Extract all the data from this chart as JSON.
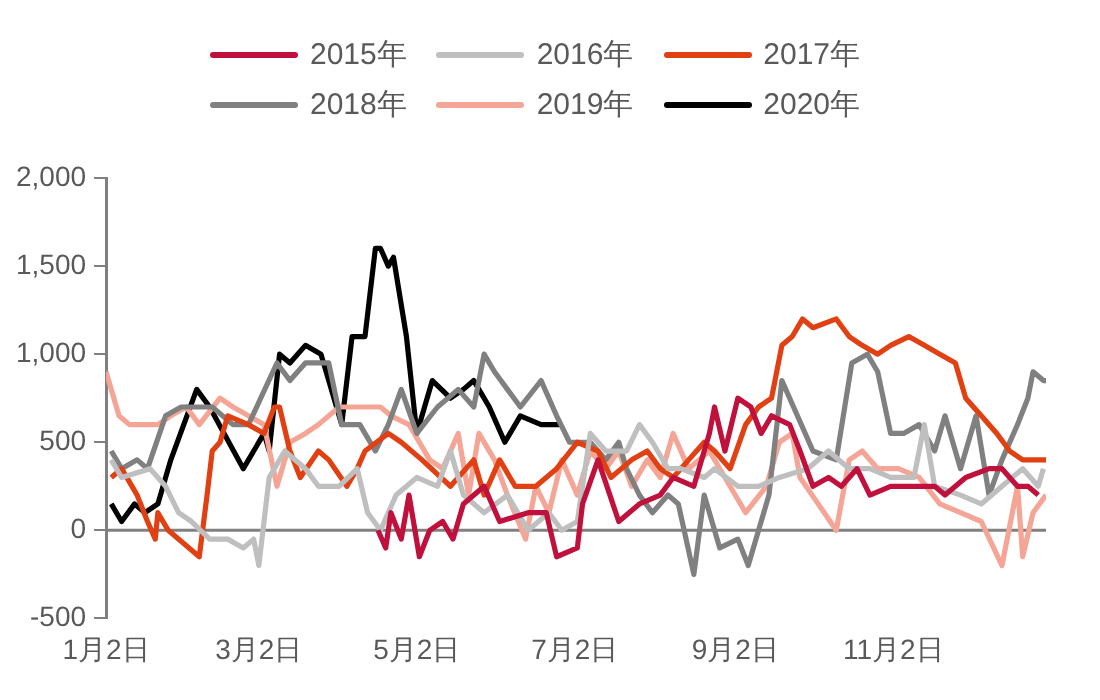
{
  "chart_data": {
    "type": "line",
    "xlim": [
      "--01-02",
      "--12-31"
    ],
    "xticks": [
      {
        "value": "--01-02",
        "label": "1月2日"
      },
      {
        "value": "--03-02",
        "label": "3月2日"
      },
      {
        "value": "--05-02",
        "label": "5月2日"
      },
      {
        "value": "--07-02",
        "label": "7月2日"
      },
      {
        "value": "--09-02",
        "label": "9月2日"
      },
      {
        "value": "--11-02",
        "label": "11月2日"
      }
    ],
    "ylim": [
      -500,
      2000
    ],
    "yticks": [
      {
        "value": -500,
        "label": "-500"
      },
      {
        "value": 0,
        "label": "0"
      },
      {
        "value": 500,
        "label": "500"
      },
      {
        "value": 1000,
        "label": "1,000"
      },
      {
        "value": 1500,
        "label": "1,500"
      },
      {
        "value": 2000,
        "label": "2,000"
      }
    ],
    "grid": false,
    "legend": "top",
    "ref_lines": [
      {
        "axis": "y",
        "value": 0,
        "color": "#808080"
      }
    ],
    "series": [
      {
        "name": "2015年",
        "color": "#c0103c",
        "x": [
          "--04-17",
          "--04-20",
          "--04-22",
          "--04-26",
          "--04-29",
          "--05-03",
          "--05-07",
          "--05-12",
          "--05-16",
          "--05-20",
          "--05-28",
          "--06-03",
          "--06-14",
          "--06-21",
          "--06-25",
          "--07-03",
          "--07-05",
          "--07-11",
          "--07-19",
          "--07-27",
          "--08-04",
          "--08-09",
          "--08-17",
          "--08-23",
          "--08-25",
          "--08-29",
          "--09-03",
          "--09-08",
          "--09-12",
          "--09-16",
          "--09-23",
          "--09-27",
          "--10-02",
          "--10-08",
          "--10-13",
          "--10-19",
          "--10-24",
          "--11-01",
          "--11-10",
          "--11-18",
          "--11-22",
          "--11-30",
          "--12-09",
          "--12-14",
          "--12-20",
          "--12-24",
          "--12-28"
        ],
        "values": [
          0,
          -100,
          100,
          -50,
          200,
          -150,
          0,
          50,
          -50,
          150,
          250,
          50,
          100,
          100,
          -150,
          -100,
          150,
          400,
          50,
          150,
          200,
          300,
          250,
          550,
          700,
          450,
          750,
          700,
          550,
          650,
          600,
          450,
          250,
          300,
          250,
          350,
          200,
          250,
          250,
          250,
          200,
          300,
          350,
          350,
          250,
          250,
          200
        ]
      },
      {
        "name": "2016年",
        "color": "#bfbfbf",
        "x": [
          "--01-04",
          "--01-08",
          "--01-19",
          "--01-25",
          "--01-30",
          "--02-04",
          "--02-11",
          "--02-18",
          "--02-24",
          "--02-28",
          "--03-02",
          "--03-04",
          "--03-06",
          "--03-12",
          "--03-20",
          "--03-25",
          "--04-02",
          "--04-09",
          "--04-13",
          "--04-18",
          "--04-24",
          "--05-02",
          "--05-10",
          "--05-15",
          "--05-20",
          "--05-28",
          "--06-06",
          "--06-14",
          "--06-22",
          "--06-27",
          "--07-03",
          "--07-08",
          "--07-14",
          "--07-22",
          "--07-27",
          "--08-01",
          "--08-07",
          "--08-12",
          "--08-21",
          "--08-25",
          "--09-03",
          "--09-11",
          "--09-19",
          "--09-30",
          "--10-08",
          "--10-16",
          "--10-24",
          "--11-01",
          "--11-10",
          "--11-14",
          "--11-18",
          "--11-28",
          "--12-06",
          "--12-14",
          "--12-22",
          "--12-28",
          "--12-30"
        ],
        "values": [
          400,
          300,
          350,
          250,
          100,
          50,
          -50,
          -50,
          -100,
          -50,
          -200,
          50,
          300,
          450,
          350,
          250,
          250,
          350,
          100,
          0,
          200,
          300,
          250,
          450,
          200,
          100,
          200,
          0,
          100,
          0,
          50,
          550,
          450,
          450,
          600,
          500,
          350,
          350,
          300,
          350,
          250,
          250,
          300,
          350,
          450,
          350,
          350,
          300,
          300,
          600,
          250,
          200,
          150,
          250,
          350,
          250,
          350
        ]
      },
      {
        "name": "2017年",
        "color": "#e04012",
        "x": [
          "--01-04",
          "--01-08",
          "--01-14",
          "--01-18",
          "--01-21",
          "--01-22",
          "--01-26",
          "--02-07",
          "--02-10",
          "--02-12",
          "--02-15",
          "--02-18",
          "--02-26",
          "--03-04",
          "--03-08",
          "--03-10",
          "--03-14",
          "--03-18",
          "--03-25",
          "--03-29",
          "--04-05",
          "--04-09",
          "--04-12",
          "--04-21",
          "--04-26",
          "--05-04",
          "--05-15",
          "--05-24",
          "--05-28",
          "--06-03",
          "--06-09",
          "--06-17",
          "--06-25",
          "--07-03",
          "--07-11",
          "--07-16",
          "--07-24",
          "--07-30",
          "--08-04",
          "--08-09",
          "--08-15",
          "--08-21",
          "--08-25",
          "--08-31",
          "--09-06",
          "--09-11",
          "--09-16",
          "--09-20",
          "--09-24",
          "--09-28",
          "--10-02",
          "--10-11",
          "--10-16",
          "--10-21",
          "--10-27",
          "--11-01",
          "--11-08",
          "--11-14",
          "--11-20",
          "--11-26",
          "--11-30",
          "--12-06",
          "--12-12",
          "--12-17",
          "--12-22",
          "--12-30",
          "--12-31"
        ],
        "values": [
          300,
          350,
          200,
          50,
          -50,
          100,
          0,
          -150,
          200,
          450,
          500,
          650,
          600,
          550,
          700,
          700,
          450,
          300,
          450,
          400,
          250,
          350,
          450,
          550,
          500,
          400,
          250,
          400,
          200,
          400,
          250,
          250,
          350,
          500,
          450,
          300,
          400,
          450,
          350,
          300,
          400,
          500,
          450,
          350,
          600,
          700,
          750,
          1050,
          1100,
          1200,
          1150,
          1200,
          1100,
          1050,
          1000,
          1050,
          1100,
          1050,
          1000,
          950,
          750,
          650,
          550,
          450,
          400,
          400,
          400
        ]
      },
      {
        "name": "2018年",
        "color": "#808080",
        "x": [
          "--01-04",
          "--01-08",
          "--01-14",
          "--01-18",
          "--01-25",
          "--01-31",
          "--02-06",
          "--02-12",
          "--02-20",
          "--02-26",
          "--03-09",
          "--03-14",
          "--03-20",
          "--03-29",
          "--04-03",
          "--04-10",
          "--04-16",
          "--04-21",
          "--04-26",
          "--05-02",
          "--05-10",
          "--05-18",
          "--05-24",
          "--05-28",
          "--06-01",
          "--06-06",
          "--06-11",
          "--06-19",
          "--06-25",
          "--06-30",
          "--07-08",
          "--07-14",
          "--07-19",
          "--07-22",
          "--07-27",
          "--08-01",
          "--08-07",
          "--08-11",
          "--08-17",
          "--08-21",
          "--08-27",
          "--09-03",
          "--09-07",
          "--09-11",
          "--09-15",
          "--09-20",
          "--09-26",
          "--10-02",
          "--10-11",
          "--10-17",
          "--10-23",
          "--10-27",
          "--11-01",
          "--11-06",
          "--11-12",
          "--11-18",
          "--11-22",
          "--11-28",
          "--12-04",
          "--12-09",
          "--12-14",
          "--12-20",
          "--12-24",
          "--12-26",
          "--12-30",
          "--12-31"
        ],
        "values": [
          450,
          350,
          400,
          350,
          650,
          700,
          700,
          700,
          600,
          600,
          950,
          850,
          950,
          950,
          600,
          600,
          450,
          600,
          800,
          550,
          700,
          800,
          700,
          1000,
          900,
          800,
          700,
          850,
          650,
          500,
          500,
          400,
          500,
          350,
          200,
          100,
          200,
          150,
          -250,
          200,
          -100,
          -50,
          -200,
          0,
          200,
          850,
          650,
          450,
          400,
          950,
          1000,
          900,
          550,
          550,
          600,
          450,
          650,
          350,
          650,
          200,
          400,
          600,
          750,
          900,
          850,
          850
        ]
      },
      {
        "name": "2019年",
        "color": "#f4a596",
        "x": [
          "--01-02",
          "--01-07",
          "--01-11",
          "--01-17",
          "--01-22",
          "--01-27",
          "--02-02",
          "--02-07",
          "--02-15",
          "--02-20",
          "--02-26",
          "--03-04",
          "--03-09",
          "--03-14",
          "--03-20",
          "--03-25",
          "--04-02",
          "--04-10",
          "--04-18",
          "--04-22",
          "--04-29",
          "--05-07",
          "--05-12",
          "--05-18",
          "--05-22",
          "--05-26",
          "--06-01",
          "--06-06",
          "--06-13",
          "--06-17",
          "--06-22",
          "--06-27",
          "--07-03",
          "--07-08",
          "--07-14",
          "--07-19",
          "--07-24",
          "--07-30",
          "--08-04",
          "--08-09",
          "--08-15",
          "--08-23",
          "--08-29",
          "--09-06",
          "--09-14",
          "--09-19",
          "--09-24",
          "--09-27",
          "--10-04",
          "--10-11",
          "--10-16",
          "--10-21",
          "--10-27",
          "--11-04",
          "--11-12",
          "--11-20",
          "--11-28",
          "--12-06",
          "--12-14",
          "--12-20",
          "--12-22",
          "--12-26",
          "--12-31"
        ],
        "values": [
          900,
          650,
          600,
          600,
          600,
          650,
          700,
          600,
          750,
          700,
          650,
          600,
          250,
          500,
          550,
          600,
          700,
          700,
          700,
          650,
          600,
          400,
          350,
          550,
          200,
          550,
          400,
          200,
          -50,
          250,
          100,
          400,
          200,
          450,
          350,
          450,
          250,
          400,
          300,
          550,
          350,
          450,
          300,
          100,
          250,
          500,
          550,
          300,
          150,
          0,
          400,
          450,
          350,
          350,
          300,
          150,
          100,
          50,
          -200,
          250,
          -150,
          100,
          200
        ]
      },
      {
        "name": "2020年",
        "color": "#000000",
        "x": [
          "--01-04",
          "--01-08",
          "--01-13",
          "--01-17",
          "--01-22",
          "--01-27",
          "--02-06",
          "--02-11",
          "--02-24",
          "--03-04",
          "--03-06",
          "--03-10",
          "--03-14",
          "--03-20",
          "--03-26",
          "--04-03",
          "--04-07",
          "--04-12",
          "--04-16",
          "--04-18",
          "--04-21",
          "--04-23",
          "--04-28",
          "--05-02",
          "--05-08",
          "--05-15",
          "--05-20",
          "--05-24",
          "--05-30",
          "--06-05",
          "--06-11",
          "--06-19",
          "--06-27"
        ],
        "values": [
          150,
          50,
          150,
          100,
          150,
          400,
          800,
          700,
          350,
          550,
          450,
          1000,
          950,
          1050,
          1000,
          600,
          1100,
          1100,
          1600,
          1600,
          1500,
          1550,
          1100,
          550,
          850,
          750,
          800,
          850,
          700,
          500,
          650,
          600,
          600
        ]
      }
    ]
  }
}
